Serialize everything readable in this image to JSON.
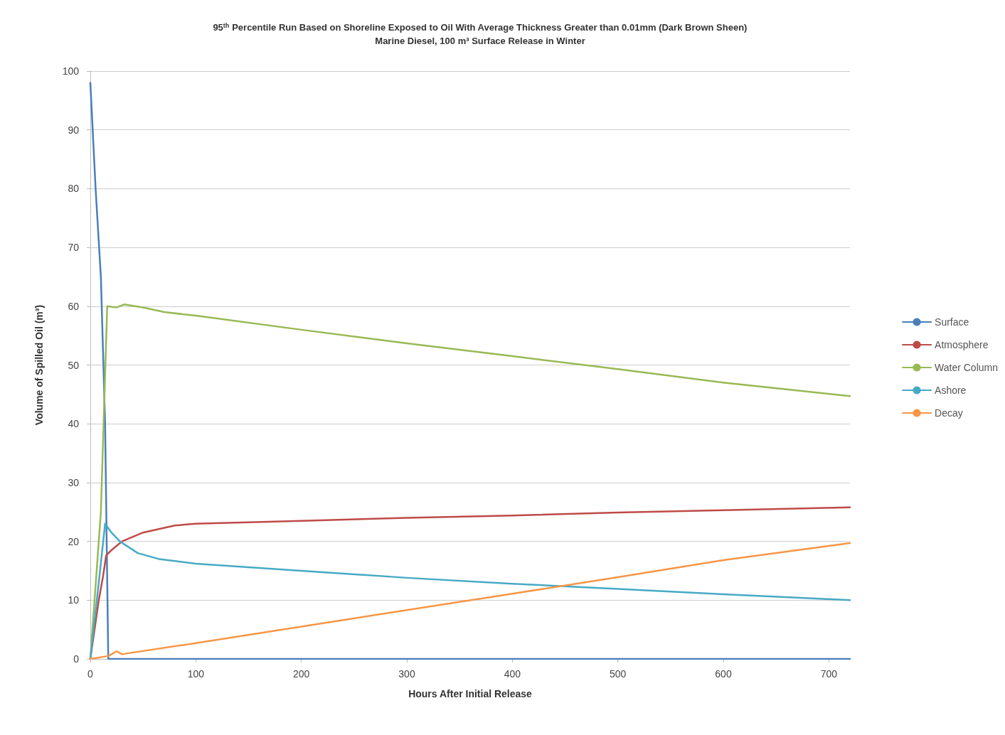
{
  "chart_data": {
    "type": "line",
    "title": "95$^{th}$ Percentile Run Based on Shoreline Exposed to Oil With Average Thickness Greater than 0.01mm (Dark Brown Sheen)",
    "subtitle": "Marine Diesel, 100 m³ Surface Release in Winter",
    "xlabel": "Hours After Initial Release",
    "ylabel": "Volume of Spilled Oil (m³)",
    "xlim": [
      0,
      720
    ],
    "xticks": [
      0,
      100,
      200,
      300,
      400,
      500,
      600,
      700
    ],
    "ylim": [
      0,
      100
    ],
    "yticks": [
      0,
      10,
      20,
      30,
      40,
      50,
      60,
      70,
      80,
      90,
      100
    ],
    "grid": "y",
    "legend": "right",
    "marker": "none",
    "line_style": "solid",
    "series": [
      {
        "name": "Surface",
        "color": "#4a7ebb",
        "x": [
          0,
          5,
          10,
          14,
          17,
          25,
          100,
          300,
          500,
          720
        ],
        "values": [
          98,
          80,
          65,
          40,
          0,
          0,
          0,
          0,
          0,
          0
        ]
      },
      {
        "name": "Atmosphere",
        "color": "#be4b48",
        "x": [
          0,
          8,
          12,
          15,
          20,
          30,
          50,
          80,
          100,
          200,
          300,
          400,
          500,
          600,
          720
        ],
        "values": [
          0,
          10,
          14,
          17.6,
          18.5,
          20,
          21.5,
          22.7,
          23,
          23.5,
          24,
          24.4,
          24.9,
          25.3,
          25.8
        ]
      },
      {
        "name": "Water Column",
        "color": "#98b954",
        "x": [
          0,
          10,
          16,
          25,
          32,
          50,
          70,
          100,
          200,
          300,
          400,
          500,
          600,
          720
        ],
        "values": [
          0,
          25,
          60,
          59.8,
          60.3,
          59.8,
          59,
          58.4,
          56,
          53.7,
          51.5,
          49.3,
          47,
          44.7
        ]
      },
      {
        "name": "Ashore",
        "color": "#46aac5",
        "x": [
          0,
          8,
          14,
          20,
          28,
          45,
          65,
          100,
          200,
          300,
          400,
          500,
          600,
          720
        ],
        "values": [
          0,
          13,
          23,
          21.5,
          20,
          18,
          17,
          16.2,
          15,
          13.8,
          12.8,
          11.9,
          11,
          10
        ]
      },
      {
        "name": "Decay",
        "color": "#f79646",
        "x": [
          0,
          17,
          25,
          30,
          100,
          200,
          300,
          400,
          500,
          600,
          720
        ],
        "values": [
          0,
          0.5,
          1.3,
          0.8,
          2.7,
          5.5,
          8.3,
          11.1,
          13.9,
          16.8,
          19.7
        ]
      }
    ]
  }
}
